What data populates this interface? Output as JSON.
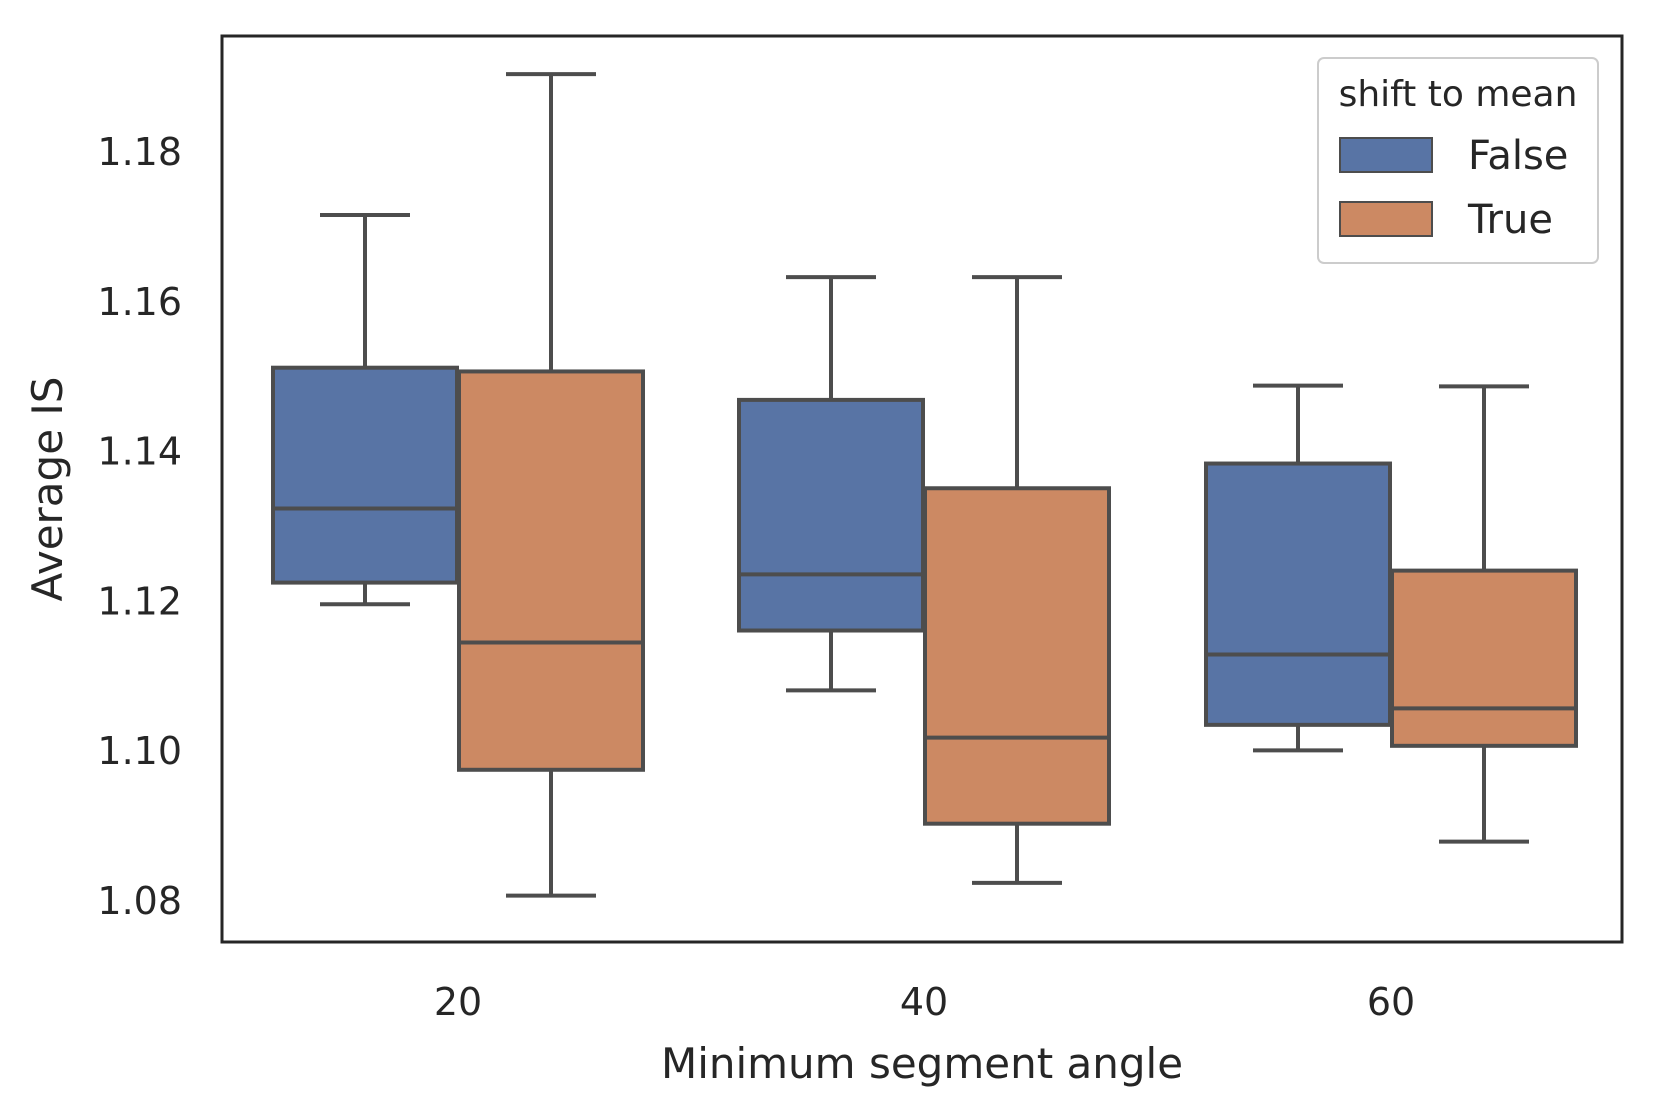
{
  "chart_data": {
    "type": "box",
    "xlabel": "Minimum segment angle",
    "ylabel": "Average IS",
    "categories": [
      "20",
      "40",
      "60"
    ],
    "ylim": [
      1.0745,
      1.1955
    ],
    "yticks": [
      "1.08",
      "1.10",
      "1.12",
      "1.14",
      "1.16",
      "1.18"
    ],
    "grid": false,
    "legend": {
      "title": "shift to mean",
      "position": "top-right"
    },
    "series": [
      {
        "name": "False",
        "color": "#5874a5",
        "boxes": [
          {
            "whisker_low": 1.1196,
            "q1": 1.1225,
            "median": 1.1324,
            "q3": 1.1512,
            "whisker_high": 1.1716
          },
          {
            "whisker_low": 1.1081,
            "q1": 1.1161,
            "median": 1.1236,
            "q3": 1.1469,
            "whisker_high": 1.1633
          },
          {
            "whisker_low": 1.1001,
            "q1": 1.1035,
            "median": 1.1129,
            "q3": 1.1384,
            "whisker_high": 1.1488
          }
        ]
      },
      {
        "name": "True",
        "color": "#cc8963",
        "boxes": [
          {
            "whisker_low": 1.0807,
            "q1": 1.0975,
            "median": 1.1145,
            "q3": 1.1507,
            "whisker_high": 1.1904
          },
          {
            "whisker_low": 1.0824,
            "q1": 1.0903,
            "median": 1.1018,
            "q3": 1.1351,
            "whisker_high": 1.1633
          },
          {
            "whisker_low": 1.0879,
            "q1": 1.1007,
            "median": 1.1057,
            "q3": 1.1241,
            "whisker_high": 1.1487
          }
        ]
      }
    ]
  }
}
